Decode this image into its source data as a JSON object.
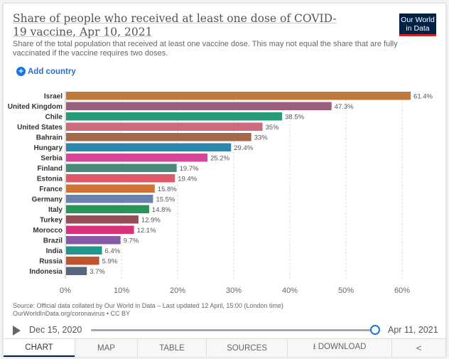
{
  "header": {
    "title": "Share of people who received at least one dose of COVID-19 vaccine, Apr 10, 2021",
    "subtitle": "Share of the total population that received at least one vaccine dose. This may not equal the share that are fully vaccinated if the vaccine requires two doses.",
    "logo": "Our World in Data"
  },
  "controls": {
    "add_country": "Add country",
    "add_icon": "plus-circle-icon"
  },
  "chart_data": {
    "type": "bar",
    "orientation": "horizontal",
    "categories": [
      "Israel",
      "United Kingdom",
      "Chile",
      "United States",
      "Bahrain",
      "Hungary",
      "Serbia",
      "Finland",
      "Estonia",
      "France",
      "Germany",
      "Italy",
      "Turkey",
      "Morocco",
      "Brazil",
      "India",
      "Russia",
      "Indonesia"
    ],
    "values": [
      61.4,
      47.3,
      38.5,
      35,
      33,
      29.4,
      25.2,
      19.7,
      19.4,
      15.8,
      15.5,
      14.8,
      12.9,
      12.1,
      9.7,
      6.4,
      5.9,
      3.7
    ],
    "value_labels": [
      "61.4%",
      "47.3%",
      "38.5%",
      "35%",
      "33%",
      "29.4%",
      "25.2%",
      "19.7%",
      "19.4%",
      "15.8%",
      "15.5%",
      "14.8%",
      "12.9%",
      "12.1%",
      "9.7%",
      "6.4%",
      "5.9%",
      "3.7%"
    ],
    "colors": [
      "#c0783b",
      "#9a5f7e",
      "#269b77",
      "#cf6a7d",
      "#a4694a",
      "#2f86ac",
      "#d5469c",
      "#4a8a7c",
      "#df5866",
      "#cf7336",
      "#6a81ad",
      "#2a9556",
      "#974e56",
      "#d83378",
      "#875aa6",
      "#22958c",
      "#c0532f",
      "#55667e"
    ],
    "xlim": [
      0,
      62
    ],
    "xticks": [
      0,
      10,
      20,
      30,
      40,
      50,
      60
    ],
    "xtick_labels": [
      "0%",
      "10%",
      "20%",
      "30%",
      "40%",
      "50%",
      "60%"
    ],
    "grid": "vertical dashed"
  },
  "footer": {
    "source": "Source: Official data collated by Our World in Data – Last updated 12 April, 15:00 (London time)",
    "url": "OurWorldInData.org/coronavirus • CC BY"
  },
  "timeline": {
    "start": "Dec 15, 2020",
    "end": "Apr 11, 2021",
    "position": 1.0
  },
  "tabs": [
    {
      "label": "CHART",
      "active": true
    },
    {
      "label": "MAP"
    },
    {
      "label": "TABLE"
    },
    {
      "label": "SOURCES"
    },
    {
      "label": "⭳ DOWNLOAD"
    },
    {
      "label": "share-icon",
      "icon": "share-icon"
    }
  ]
}
